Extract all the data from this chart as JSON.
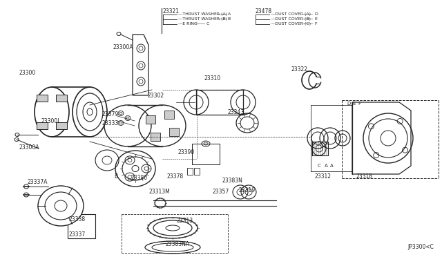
{
  "bg_color": "#ffffff",
  "line_color": "#222222",
  "text_color": "#222222",
  "fig_width": 6.4,
  "fig_height": 3.72,
  "dpi": 100,
  "watermark": "JP3300<C",
  "legend_left_part": "23321",
  "legend_left_items": [
    [
      "THRUST WASHER (A)",
      "A"
    ],
    [
      "THRUST WASHER (B)",
      "B"
    ],
    [
      "E RING",
      "C"
    ]
  ],
  "legend_right_part": "23478",
  "legend_right_items": [
    [
      "DUST COVER (A)",
      "D"
    ],
    [
      "DUST COVER (B)",
      "E"
    ],
    [
      "DUST COVER (C)",
      "F"
    ]
  ]
}
